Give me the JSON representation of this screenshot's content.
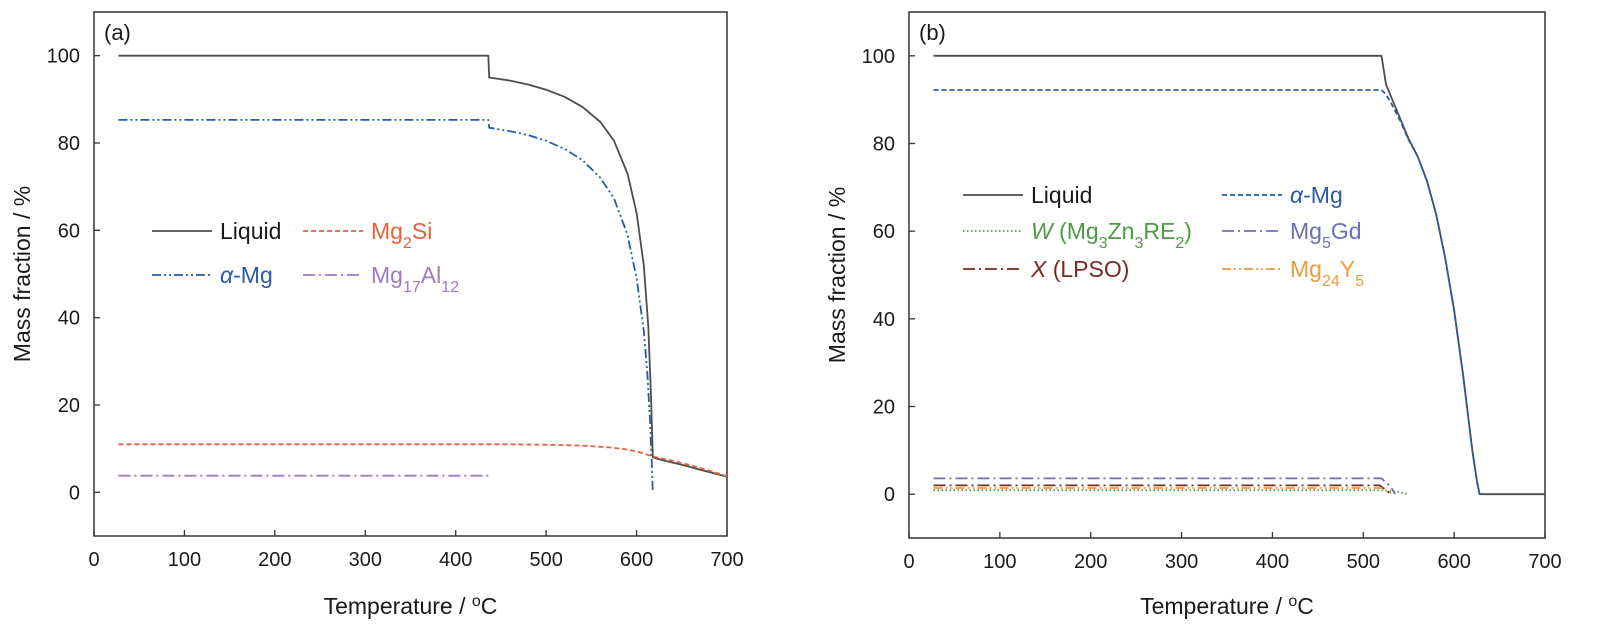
{
  "colors": {
    "liquid": "#4d4d4d",
    "alpha_mg": "#2a5aa8",
    "mg2si": "#e8603c",
    "mg17al12": "#a07ac0",
    "w_phase": "#4e9a45",
    "mg5gd": "#6f6fb5",
    "x_lpso": "#7a2a22",
    "mg24y5": "#ef9a3a"
  },
  "chart_data": [
    {
      "type": "line",
      "panel_label": "(a)",
      "xlabel": "Temperature / ",
      "xlabel_unit": "oC",
      "ylabel": "Mass fraction / %",
      "xlim": [
        0,
        700
      ],
      "ylim": [
        -10,
        110
      ],
      "xticks": [
        0,
        100,
        200,
        300,
        400,
        500,
        600,
        700
      ],
      "yticks": [
        0,
        20,
        40,
        60,
        80,
        100
      ],
      "grid": false,
      "legend_placement": "center-left",
      "series": [
        {
          "name": "Liquid",
          "name_html": "Liquid",
          "color_key": "liquid",
          "dash": "solid",
          "x": [
            27,
            436,
            437,
            460,
            480,
            500,
            520,
            540,
            560,
            575,
            590,
            600,
            608,
            613,
            616,
            618,
            630,
            650,
            670,
            690,
            700
          ],
          "y": [
            100,
            100,
            95,
            94.3,
            93.4,
            92.2,
            90.6,
            88.3,
            84.8,
            80.5,
            73,
            64,
            52,
            38,
            22,
            8,
            7.3,
            6.3,
            5.2,
            4.1,
            3.6
          ]
        },
        {
          "name": "α-Mg",
          "name_html": "<tspan font-style='italic'>α</tspan>-Mg",
          "color_key": "alpha_mg",
          "dash": "dashdotdot",
          "x": [
            27,
            436,
            437,
            460,
            480,
            500,
            520,
            540,
            560,
            575,
            590,
            600,
            608,
            612,
            615,
            617,
            618
          ],
          "y": [
            85.3,
            85.3,
            83.5,
            82.7,
            81.8,
            80.5,
            78.7,
            76.1,
            72,
            67.3,
            59,
            49,
            37,
            27,
            16,
            6,
            0
          ]
        },
        {
          "name": "Mg2Si",
          "name_html": "Mg<tspan baseline-shift='sub' font-size='16'>2</tspan>Si",
          "color_key": "mg2si",
          "dash": "dashed",
          "x": [
            27,
            300,
            450,
            500,
            540,
            570,
            590,
            605,
            618,
            640,
            660,
            680,
            700
          ],
          "y": [
            11,
            11,
            11,
            10.9,
            10.7,
            10.3,
            9.8,
            9.1,
            8.2,
            7.2,
            6.2,
            5,
            3.7
          ]
        },
        {
          "name": "Mg17Al12",
          "name_html": "Mg<tspan baseline-shift='sub' font-size='16'>17</tspan>Al<tspan baseline-shift='sub' font-size='16'>12</tspan>",
          "color_key": "mg17al12",
          "dash": "dashdot",
          "x": [
            27,
            436
          ],
          "y": [
            3.8,
            3.8
          ]
        }
      ]
    },
    {
      "type": "line",
      "panel_label": "(b)",
      "xlabel": "Temperature / ",
      "xlabel_unit": "oC",
      "ylabel": "Mass fraction / %",
      "xlim": [
        0,
        700
      ],
      "ylim": [
        -10,
        110
      ],
      "xticks": [
        0,
        100,
        200,
        300,
        400,
        500,
        600,
        700
      ],
      "yticks": [
        0,
        20,
        40,
        60,
        80,
        100
      ],
      "grid": false,
      "legend_placement": "center",
      "series": [
        {
          "name": "Liquid",
          "name_html": "Liquid",
          "color_key": "liquid",
          "dash": "solid",
          "x": [
            27,
            520,
            525,
            530,
            540,
            550,
            560,
            570,
            580,
            590,
            600,
            610,
            620,
            625,
            628,
            700
          ],
          "y": [
            100,
            100,
            93.5,
            91,
            86,
            81,
            77,
            71.5,
            64,
            54,
            42,
            27,
            10,
            3,
            0,
            0
          ]
        },
        {
          "name": "α-Mg",
          "name_html": "<tspan font-style='italic'>α</tspan>-Mg",
          "color_key": "alpha_mg",
          "dash": "dashed",
          "x": [
            27,
            520,
            525,
            530,
            540,
            550,
            560,
            570,
            580,
            590,
            600,
            610,
            620,
            625,
            628
          ],
          "y": [
            92.2,
            92.2,
            91.2,
            89.5,
            85.5,
            80.8,
            77,
            71.5,
            64,
            54,
            42,
            27,
            10,
            3,
            0
          ]
        },
        {
          "name": "W (Mg3Zn3RE2)",
          "name_html": "<tspan font-style='italic'>W</tspan> (Mg<tspan baseline-shift='sub' font-size='16'>3</tspan>Zn<tspan baseline-shift='sub' font-size='16'>3</tspan>RE<tspan baseline-shift='sub' font-size='16'>2</tspan>)",
          "color_key": "w_phase",
          "dash": "dotted",
          "x": [
            27,
            520,
            535,
            550
          ],
          "y": [
            0.9,
            0.9,
            0.6,
            0
          ]
        },
        {
          "name": "Mg5Gd",
          "name_html": "Mg<tspan baseline-shift='sub' font-size='16'>5</tspan>Gd",
          "color_key": "mg5gd",
          "dash": "dashdot",
          "x": [
            27,
            520,
            530,
            535
          ],
          "y": [
            3.6,
            3.6,
            1.8,
            0
          ]
        },
        {
          "name": "X (LPSO)",
          "name_html": "<tspan font-style='italic'>X</tspan> (LPSO)",
          "color_key": "x_lpso",
          "dash": "dashdot",
          "x": [
            27,
            518,
            526,
            530
          ],
          "y": [
            2.0,
            2.0,
            0.8,
            0
          ]
        },
        {
          "name": "Mg24Y5",
          "name_html": "Mg<tspan baseline-shift='sub' font-size='16'>24</tspan>Y<tspan baseline-shift='sub' font-size='16'>5</tspan>",
          "color_key": "mg24y5",
          "dash": "dashdotdot",
          "x": [
            27,
            520,
            528,
            532
          ],
          "y": [
            1.4,
            1.4,
            0.6,
            0
          ]
        }
      ]
    }
  ]
}
